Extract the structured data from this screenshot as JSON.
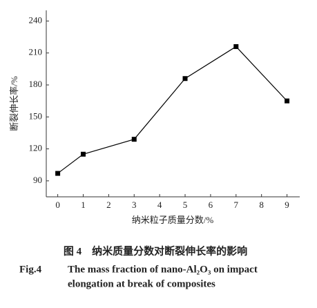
{
  "chart_data": {
    "type": "line",
    "x": [
      0,
      1,
      3,
      5,
      7,
      9
    ],
    "values": [
      97,
      115,
      129,
      186,
      216,
      165
    ],
    "color": "#000000",
    "xlim": [
      -0.45,
      9.5
    ],
    "xticks": [
      0,
      1,
      2,
      3,
      4,
      5,
      6,
      7,
      8,
      9
    ],
    "ylim": [
      75,
      250
    ],
    "yticks": [
      90,
      120,
      150,
      180,
      210,
      240
    ],
    "x_label": "纳米粒子质量分数/%",
    "y_label": "断裂伸长率/%",
    "caption_cn": "图 4　纳米质量分数对断裂伸长率的影响",
    "caption_en_label": "Fig.4",
    "caption_en_line1": "The mass fraction of nano-Al₂O₃ on impact",
    "caption_en_line2": "elongation at break of composites"
  }
}
